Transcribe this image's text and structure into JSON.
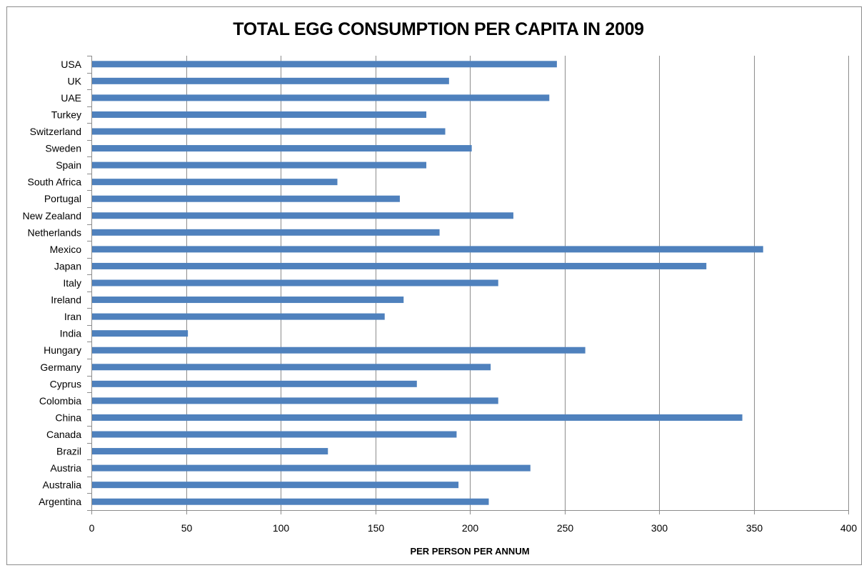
{
  "chart_data": {
    "type": "bar",
    "orientation": "horizontal",
    "title": "TOTAL EGG CONSUMPTION PER CAPITA IN 2009",
    "xlabel": "PER PERSON PER ANNUM",
    "ylabel": "",
    "xlim": [
      0,
      400
    ],
    "x_ticks": [
      "0",
      "50",
      "100",
      "150",
      "200",
      "250",
      "300",
      "350",
      "400"
    ],
    "grid": "vertical major gridlines",
    "legend": "none",
    "bar_color": "#4f81bd",
    "categories": [
      "USA",
      "UK",
      "UAE",
      "Turkey",
      "Switzerland",
      "Sweden",
      "Spain",
      "South Africa",
      "Portugal",
      "New Zealand",
      "Netherlands",
      "Mexico",
      "Japan",
      "Italy",
      "Ireland",
      "Iran",
      "India",
      "Hungary",
      "Germany",
      "Cyprus",
      "Colombia",
      "China",
      "Canada",
      "Brazil",
      "Austria",
      "Australia",
      "Argentina"
    ],
    "values": [
      246,
      189,
      242,
      177,
      187,
      201,
      177,
      130,
      163,
      223,
      184,
      355,
      325,
      215,
      165,
      155,
      51,
      261,
      211,
      172,
      215,
      344,
      193,
      125,
      232,
      194,
      210
    ]
  }
}
